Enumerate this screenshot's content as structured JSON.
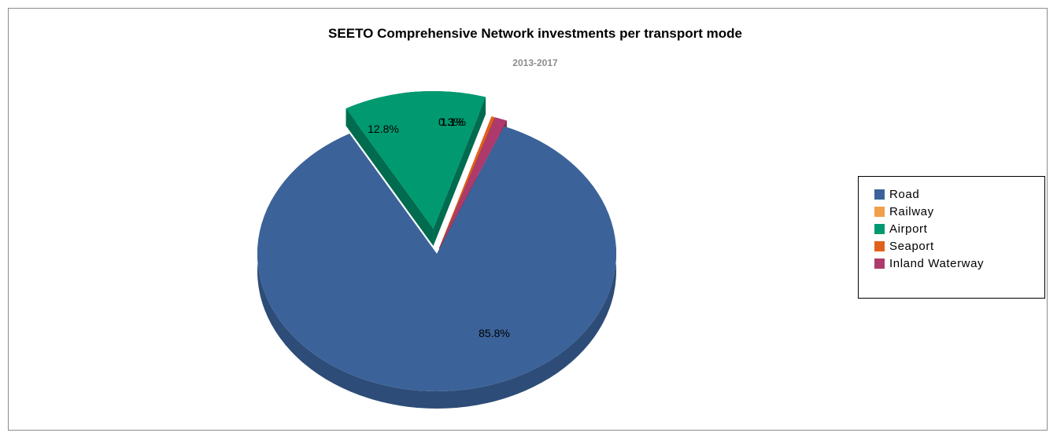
{
  "chart_data": {
    "type": "pie",
    "title": "SEETO Comprehensive Network investments per transport mode",
    "subtitle": "2013-2017",
    "legend_position": "right",
    "three_d": true,
    "exploded": true,
    "categories": [
      "Road",
      "Railway",
      "Airport",
      "Seaport",
      "Inland Waterway"
    ],
    "values": [
      85.8,
      0.0,
      12.8,
      0.3,
      1.1
    ],
    "data_labels": [
      "85.8%",
      "",
      "12.8%",
      "0.3%",
      "1.1%"
    ],
    "colors": [
      "#3b6399",
      "#f0a04b",
      "#009970",
      "#e0611b",
      "#ae3a6d"
    ],
    "side_colors": [
      "#2d4c77",
      "#b87a38",
      "#006b4e",
      "#a84814",
      "#7e2a4f"
    ]
  }
}
